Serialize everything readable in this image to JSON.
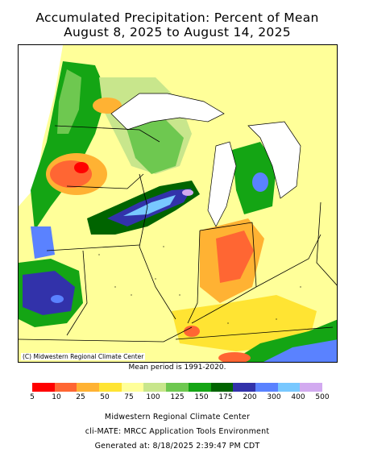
{
  "title_line1": "Accumulated Precipitation: Percent of Mean",
  "title_line2": "August 8, 2025 to August 14, 2025",
  "map_credit": "(C) Midwestern Regional Climate Center",
  "mean_note": "Mean period is 1991-2020.",
  "legend": {
    "units": "percent of mean",
    "ticks": [
      "5",
      "10",
      "25",
      "50",
      "75",
      "100",
      "125",
      "150",
      "175",
      "200",
      "300",
      "400",
      "500"
    ],
    "colors": [
      "#ff0000",
      "#ff6633",
      "#ffb233",
      "#ffe433",
      "#ffff99",
      "#c8e68c",
      "#6ec850",
      "#14a514",
      "#006400",
      "#3232aa",
      "#5a82ff",
      "#78c8ff",
      "#d2aaf0"
    ]
  },
  "footer": {
    "line1": "Midwestern Regional Climate Center",
    "line2": "cli-MATE: MRCC Application Tools Environment",
    "line3": "Generated at: 8/18/2025 2:39:47 PM CDT"
  },
  "palette": {
    "lake": "#ffffff",
    "boundary": "#000000"
  }
}
